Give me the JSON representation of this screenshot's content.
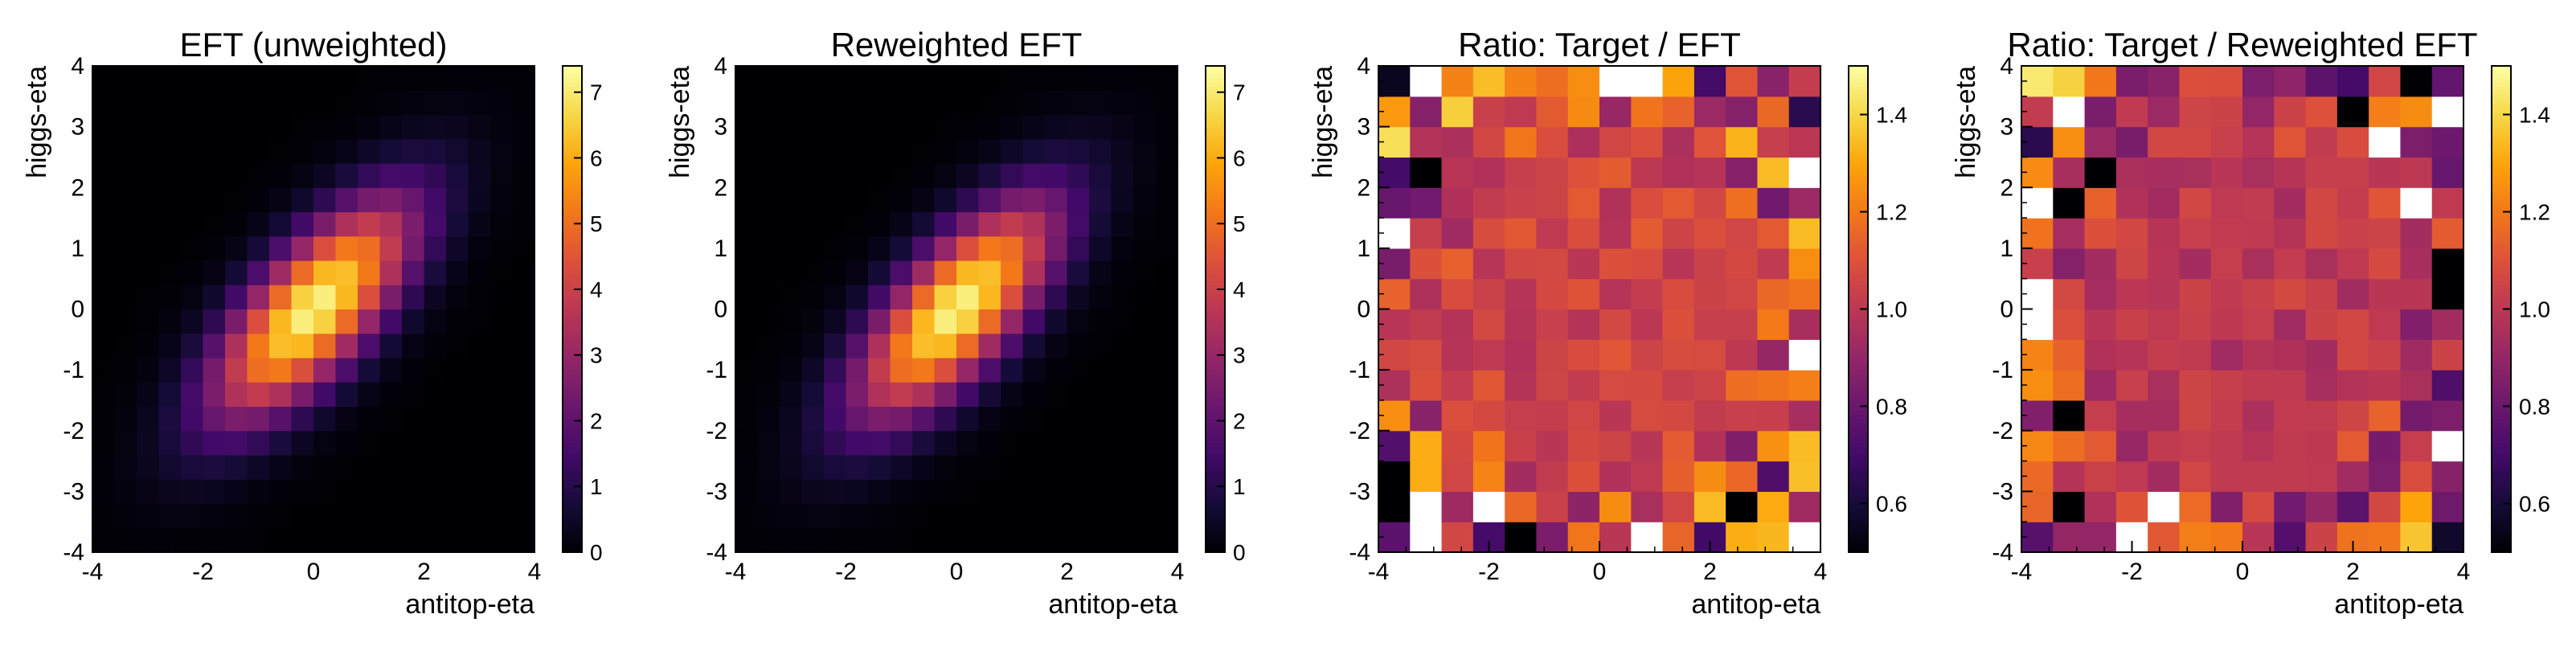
{
  "chart_data": [
    {
      "type": "heatmap",
      "title": "EFT (unweighted)",
      "xlabel": "antitop-eta",
      "ylabel": "higgs-eta",
      "xlim": [
        -4,
        4
      ],
      "ylim": [
        -4,
        4
      ],
      "xticks": [
        "-4",
        "-2",
        "0",
        "2",
        "4"
      ],
      "yticks": [
        "-4",
        "-3",
        "-2",
        "-1",
        "0",
        "1",
        "2",
        "3",
        "4"
      ],
      "bins": [
        20,
        20
      ],
      "colormap": "inferno",
      "zlim": [
        0,
        7.4
      ],
      "colorbar_ticks": [
        "0",
        "1",
        "2",
        "3",
        "4",
        "5",
        "6",
        "7"
      ],
      "distribution": {
        "kind": "correlated-gaussian",
        "peak": 7.2,
        "sigma_x": 1.25,
        "sigma_y": 1.25,
        "rho": 0.72
      }
    },
    {
      "type": "heatmap",
      "title": "Reweighted EFT",
      "xlabel": "antitop-eta",
      "ylabel": "higgs-eta",
      "xlim": [
        -4,
        4
      ],
      "ylim": [
        -4,
        4
      ],
      "xticks": [
        "-4",
        "-2",
        "0",
        "2",
        "4"
      ],
      "yticks": [
        "-4",
        "-3",
        "-2",
        "-1",
        "0",
        "1",
        "2",
        "3",
        "4"
      ],
      "bins": [
        20,
        20
      ],
      "colormap": "inferno",
      "zlim": [
        0,
        7.4
      ],
      "colorbar_ticks": [
        "0",
        "1",
        "2",
        "3",
        "4",
        "5",
        "6",
        "7"
      ],
      "distribution": {
        "kind": "correlated-gaussian",
        "peak": 7.2,
        "sigma_x": 1.25,
        "sigma_y": 1.25,
        "rho": 0.72
      }
    },
    {
      "type": "heatmap",
      "title": "Ratio: Target / EFT",
      "xlabel": "antitop-eta",
      "ylabel": "higgs-eta",
      "xlim": [
        -4,
        4
      ],
      "ylim": [
        -4,
        4
      ],
      "xticks": [
        "-4",
        "-2",
        "0",
        "2",
        "4"
      ],
      "yticks": [
        "-4",
        "-3",
        "-2",
        "-1",
        "0",
        "1",
        "2",
        "3",
        "4"
      ],
      "bins": [
        14,
        16
      ],
      "colormap": "inferno",
      "zlim": [
        0.5,
        1.5
      ],
      "colorbar_ticks": [
        "0.6",
        "0.8",
        "1.0",
        "1.2",
        "1.4"
      ],
      "distribution": {
        "kind": "ratio-noise",
        "center": 1.05,
        "noise": 0.08,
        "seed": 11
      }
    },
    {
      "type": "heatmap",
      "title": "Ratio: Target / Reweighted EFT",
      "xlabel": "antitop-eta",
      "ylabel": "higgs-eta",
      "xlim": [
        -4,
        4
      ],
      "ylim": [
        -4,
        4
      ],
      "xticks": [
        "-4",
        "-2",
        "0",
        "2",
        "4"
      ],
      "yticks": [
        "-4",
        "-3",
        "-2",
        "-1",
        "0",
        "1",
        "2",
        "3",
        "4"
      ],
      "bins": [
        14,
        16
      ],
      "colormap": "inferno",
      "zlim": [
        0.5,
        1.5
      ],
      "colorbar_ticks": [
        "0.6",
        "0.8",
        "1.0",
        "1.2",
        "1.4"
      ],
      "distribution": {
        "kind": "ratio-noise",
        "center": 1.0,
        "noise": 0.07,
        "seed": 29
      }
    }
  ]
}
